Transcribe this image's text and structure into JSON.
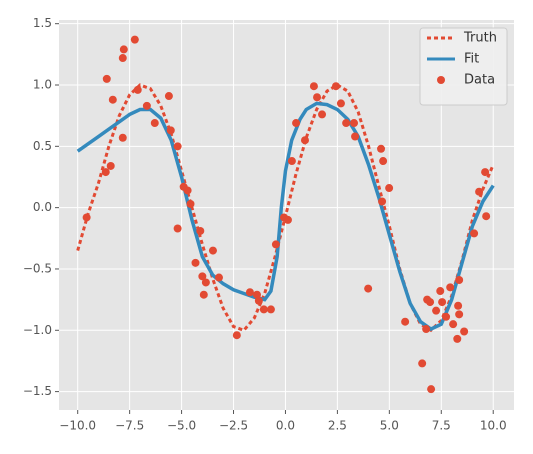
{
  "chart_data": {
    "type": "line",
    "xlim": [
      -10.9,
      11.0
    ],
    "ylim": [
      -1.65,
      1.53
    ],
    "xticks": [
      {
        "value": -10,
        "label": "−10.0"
      },
      {
        "value": -7.5,
        "label": "−7.5"
      },
      {
        "value": -5,
        "label": "−5.0"
      },
      {
        "value": -2.5,
        "label": "−2.5"
      },
      {
        "value": 0,
        "label": "0.0"
      },
      {
        "value": 2.5,
        "label": "2.5"
      },
      {
        "value": 5,
        "label": "5.0"
      },
      {
        "value": 7.5,
        "label": "7.5"
      },
      {
        "value": 10,
        "label": "10.0"
      }
    ],
    "yticks": [
      {
        "value": -1.5,
        "label": "−1.5"
      },
      {
        "value": -1,
        "label": "−1.0"
      },
      {
        "value": -0.5,
        "label": "−0.5"
      },
      {
        "value": 0,
        "label": "0.0"
      },
      0.5,
      {
        "value": 1,
        "label": "1.0"
      },
      1.5
    ],
    "grid": true,
    "legend": "upper right",
    "series": [
      {
        "name": "Truth",
        "color": "#E24A33",
        "mode": "line",
        "linestyle": "dotted",
        "x": [
          -10,
          -9.5,
          -9,
          -8.5,
          -8,
          -7.5,
          -7,
          -6.5,
          -6,
          -5.5,
          -5,
          -4.5,
          -4,
          -3.5,
          -3,
          -2.5,
          -2,
          -1.5,
          -1,
          -0.5,
          0,
          0.5,
          1,
          1.5,
          2,
          2.5,
          3,
          3.5,
          4,
          4.5,
          5,
          5.5,
          6,
          6.5,
          7,
          7.5,
          8,
          8.5,
          9,
          9.5,
          10
        ],
        "values": [
          -0.35,
          -0.05,
          0.2,
          0.5,
          0.75,
          0.92,
          1.0,
          0.97,
          0.83,
          0.6,
          0.3,
          0.0,
          -0.3,
          -0.58,
          -0.82,
          -0.97,
          -1.0,
          -0.9,
          -0.7,
          -0.4,
          -0.07,
          0.27,
          0.57,
          0.8,
          0.95,
          1.0,
          0.95,
          0.78,
          0.5,
          0.17,
          -0.15,
          -0.5,
          -0.78,
          -0.95,
          -1.0,
          -0.92,
          -0.72,
          -0.43,
          -0.1,
          0.15,
          0.35
        ]
      },
      {
        "name": "Fit",
        "color": "#348ABD",
        "mode": "line",
        "linestyle": "solid",
        "x": [
          -10,
          -9,
          -8,
          -7.5,
          -7,
          -6.5,
          -6,
          -5.5,
          -5,
          -4.5,
          -4,
          -3.5,
          -3,
          -2.5,
          -2,
          -1.5,
          -1,
          -0.7,
          -0.4,
          -0.2,
          0,
          0.3,
          0.7,
          1,
          1.5,
          2,
          2.5,
          3,
          3.5,
          4,
          4.5,
          5,
          5.5,
          6,
          6.5,
          7,
          7.5,
          8,
          8.5,
          9,
          9.5,
          10
        ],
        "values": [
          0.46,
          0.58,
          0.7,
          0.76,
          0.8,
          0.8,
          0.73,
          0.55,
          0.25,
          -0.1,
          -0.4,
          -0.55,
          -0.62,
          -0.67,
          -0.7,
          -0.73,
          -0.75,
          -0.68,
          -0.4,
          0,
          0.3,
          0.55,
          0.72,
          0.8,
          0.85,
          0.84,
          0.8,
          0.72,
          0.58,
          0.35,
          0.08,
          -0.22,
          -0.52,
          -0.78,
          -0.93,
          -0.99,
          -0.95,
          -0.75,
          -0.45,
          -0.15,
          0.05,
          0.18
        ]
      },
      {
        "name": "Data",
        "color": "#E24A33",
        "mode": "markers",
        "x": [
          -9.57,
          -8.65,
          -8.6,
          -8.41,
          -8.31,
          -7.78,
          -7.83,
          -7.83,
          -7.25,
          -7.11,
          -6.67,
          -6.29,
          -5.61,
          -5.52,
          -5.19,
          -5.19,
          -4.9,
          -4.71,
          -4.57,
          -4.33,
          -4.1,
          -4.0,
          -3.93,
          -3.83,
          -3.49,
          -3.2,
          -2.34,
          -1.71,
          -1.37,
          -1.28,
          -1.04,
          -0.7,
          -0.46,
          -0.07,
          0.12,
          0.31,
          0.51,
          0.94,
          1.37,
          1.52,
          1.76,
          2.43,
          2.67,
          2.92,
          3.3,
          3.35,
          3.98,
          4.6,
          4.7,
          4.65,
          4.99,
          5.76,
          6.58,
          6.77,
          6.82,
          6.96,
          7.01,
          7.25,
          7.45,
          7.54,
          7.73,
          7.93,
          8.07,
          8.27,
          8.31,
          8.36,
          8.36,
          8.6,
          9.08,
          9.32,
          9.61,
          9.66
        ],
        "values": [
          -0.08,
          0.29,
          1.05,
          0.34,
          0.88,
          1.29,
          1.22,
          0.57,
          1.37,
          0.96,
          0.83,
          0.69,
          0.91,
          0.63,
          0.5,
          -0.17,
          0.17,
          0.14,
          0.03,
          -0.45,
          -0.19,
          -0.56,
          -0.71,
          -0.61,
          -0.35,
          -0.57,
          -1.04,
          -0.69,
          -0.71,
          -0.76,
          -0.83,
          -0.83,
          -0.3,
          -0.08,
          -0.1,
          0.38,
          0.69,
          0.55,
          0.99,
          0.9,
          0.76,
          0.99,
          0.85,
          0.69,
          0.69,
          0.58,
          -0.66,
          0.48,
          0.38,
          0.05,
          0.16,
          -0.93,
          -1.27,
          -0.99,
          -0.75,
          -0.77,
          -1.48,
          -0.84,
          -0.68,
          -0.77,
          -0.89,
          -0.65,
          -0.95,
          -1.07,
          -0.8,
          -0.59,
          -0.87,
          -1.01,
          -0.21,
          0.13,
          0.29,
          -0.07
        ]
      }
    ]
  }
}
